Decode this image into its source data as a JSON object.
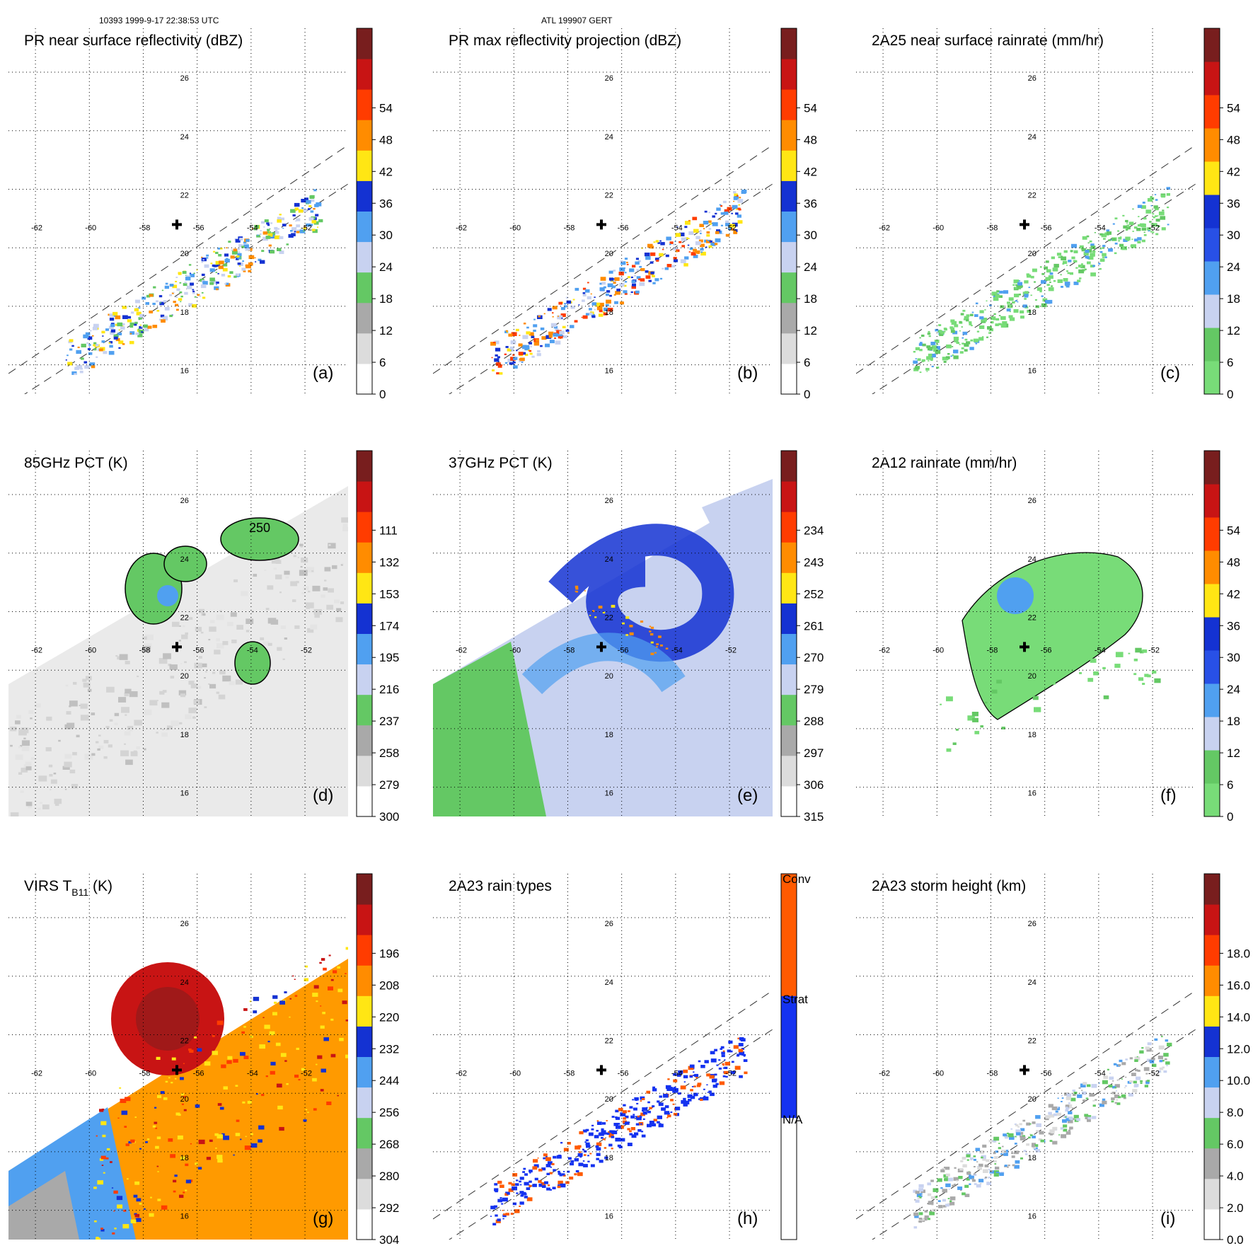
{
  "header": {
    "orbit_time": "10393 1999-9-17 22:38:53 UTC",
    "storm": "ATL 199907 GERT"
  },
  "lon_labels": [
    "-62",
    "-60",
    "-58",
    "-56",
    "-54",
    "-52"
  ],
  "lat_labels": [
    "26",
    "24",
    "22",
    "20",
    "18",
    "16"
  ],
  "panels": [
    {
      "id": "a",
      "title": "PR near surface reflectivity (dBZ)",
      "tag": "(a)",
      "scale": [
        "0",
        "6",
        "12",
        "18",
        "24",
        "30",
        "36",
        "42",
        "48",
        "54"
      ],
      "cbar": [
        "#ffffff",
        "#dcdcdc",
        "#a9a9a9",
        "#64c864",
        "#c8d2f0",
        "#50a0f0",
        "#1432d2",
        "#ffe614",
        "#ff8c00",
        "#ff3c00",
        "#c81414",
        "#781e1e"
      ],
      "data": "swath-pr",
      "center_mark": true
    },
    {
      "id": "b",
      "title": "PR max reflectivity projection (dBZ)",
      "tag": "(b)",
      "scale": [
        "0",
        "6",
        "12",
        "18",
        "24",
        "30",
        "36",
        "42",
        "48",
        "54"
      ],
      "cbar": [
        "#ffffff",
        "#dcdcdc",
        "#a9a9a9",
        "#64c864",
        "#c8d2f0",
        "#50a0f0",
        "#1432d2",
        "#ffe614",
        "#ff8c00",
        "#ff3c00",
        "#c81414",
        "#781e1e"
      ],
      "data": "swath-pr-max",
      "center_mark": true
    },
    {
      "id": "c",
      "title": "2A25 near surface rainrate (mm/hr)",
      "tag": "(c)",
      "scale": [
        "0",
        "6",
        "12",
        "18",
        "24",
        "30",
        "36",
        "42",
        "48",
        "54"
      ],
      "cbar": [
        "#78dc78",
        "#64c864",
        "#c8d2f0",
        "#50a0f0",
        "#2850e6",
        "#1432d2",
        "#ffe614",
        "#ff8c00",
        "#ff3c00",
        "#c81414",
        "#781e1e"
      ],
      "data": "swath-rain",
      "center_mark": true
    },
    {
      "id": "d",
      "title": "85GHz PCT (K)",
      "tag": "(d)",
      "scale": [
        "300",
        "279",
        "258",
        "237",
        "216",
        "195",
        "174",
        "153",
        "132",
        "111"
      ],
      "cbar": [
        "#ffffff",
        "#dcdcdc",
        "#a9a9a9",
        "#64c864",
        "#c8d2f0",
        "#50a0f0",
        "#1432d2",
        "#ffe614",
        "#ff8c00",
        "#ff3c00",
        "#c81414",
        "#781e1e"
      ],
      "data": "wide-85",
      "contour_label": "250",
      "center_mark": true
    },
    {
      "id": "e",
      "title": "37GHz PCT (K)",
      "tag": "(e)",
      "scale": [
        "315",
        "306",
        "297",
        "288",
        "279",
        "270",
        "261",
        "252",
        "243",
        "234"
      ],
      "cbar": [
        "#ffffff",
        "#dcdcdc",
        "#a9a9a9",
        "#64c864",
        "#c8d2f0",
        "#50a0f0",
        "#1432d2",
        "#ffe614",
        "#ff8c00",
        "#ff3c00",
        "#c81414",
        "#781e1e"
      ],
      "data": "wide-37",
      "center_mark": true
    },
    {
      "id": "f",
      "title": "2A12 rainrate (mm/hr)",
      "tag": "(f)",
      "scale": [
        "0",
        "6",
        "12",
        "18",
        "24",
        "30",
        "36",
        "42",
        "48",
        "54"
      ],
      "cbar": [
        "#78dc78",
        "#64c864",
        "#c8d2f0",
        "#50a0f0",
        "#2850e6",
        "#1432d2",
        "#ffe614",
        "#ff8c00",
        "#ff3c00",
        "#c81414",
        "#781e1e"
      ],
      "data": "tmi-rain",
      "center_mark": true
    },
    {
      "id": "g",
      "title": "VIRS T",
      "title_sub": "B11",
      "title_tail": " (K)",
      "tag": "(g)",
      "scale": [
        "304",
        "292",
        "280",
        "268",
        "256",
        "244",
        "232",
        "220",
        "208",
        "196"
      ],
      "cbar": [
        "#ffffff",
        "#dcdcdc",
        "#a9a9a9",
        "#64c864",
        "#c8d2f0",
        "#50a0f0",
        "#1432d2",
        "#ffe614",
        "#ff8c00",
        "#ff3c00",
        "#c81414",
        "#781e1e"
      ],
      "data": "virs",
      "center_mark": true
    },
    {
      "id": "h",
      "title": "2A23 rain types",
      "tag": "(h)",
      "scale_labels": [
        "N/A",
        "Strat",
        "Conv"
      ],
      "cbar": [
        "#ffffff",
        "#1432f0",
        "#ff5a00"
      ],
      "data": "swath-type",
      "center_mark": true
    },
    {
      "id": "i",
      "title": "2A23 storm height (km)",
      "tag": "(i)",
      "scale": [
        "0.0",
        "2.0",
        "4.0",
        "6.0",
        "8.0",
        "10.0",
        "12.0",
        "14.0",
        "16.0",
        "18.0"
      ],
      "cbar": [
        "#ffffff",
        "#dcdcdc",
        "#a9a9a9",
        "#64c864",
        "#c8d2f0",
        "#50a0f0",
        "#1432d2",
        "#ffe614",
        "#ff8c00",
        "#ff3c00",
        "#c81414",
        "#781e1e"
      ],
      "data": "swath-height",
      "center_mark": true
    }
  ]
}
